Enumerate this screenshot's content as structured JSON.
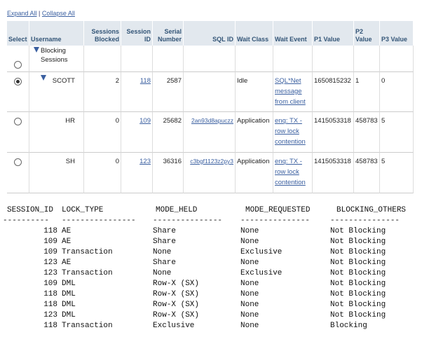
{
  "toolbar": {
    "expand": "Expand All",
    "separator": "|",
    "collapse": "Collapse All"
  },
  "table": {
    "headers": [
      "Select",
      "Username",
      "Sessions Blocked",
      "Session ID",
      "Serial Number",
      "SQL ID",
      "Wait Class",
      "Wait Event",
      "P1 Value",
      "P2 Value",
      "P3 Value"
    ],
    "root": "Blocking Sessions",
    "rows": [
      [
        "SCOTT",
        "2",
        "118",
        "2587",
        "",
        "Idle",
        "SQL*Net message from client",
        "1650815232",
        "1",
        "0"
      ],
      [
        "HR",
        "0",
        "109",
        "25682",
        "2an93d8apuczz",
        "Application",
        "enq: TX - row lock contention",
        "1415053318",
        "458783",
        "5"
      ],
      [
        "SH",
        "0",
        "123",
        "36316",
        "c3bgf1123z2py3",
        "Application",
        "enq: TX - row lock contention",
        "1415053318",
        "458783",
        "5"
      ]
    ]
  },
  "listing": {
    "headers": [
      "SESSION_ID",
      "LOCK_TYPE",
      "MODE_HELD",
      "MODE_REQUESTED",
      "BLOCKING_OTHERS"
    ],
    "rule": [
      "----------",
      "----------------",
      "---------------",
      "---------------",
      "---------------"
    ],
    "rows": [
      [
        "118",
        "AE",
        "Share",
        "None",
        "Not Blocking"
      ],
      [
        "109",
        "AE",
        "Share",
        "None",
        "Not Blocking"
      ],
      [
        "109",
        "Transaction",
        "None",
        "Exclusive",
        "Not Blocking"
      ],
      [
        "123",
        "AE",
        "Share",
        "None",
        "Not Blocking"
      ],
      [
        "123",
        "Transaction",
        "None",
        "Exclusive",
        "Not Blocking"
      ],
      [
        "109",
        "DML",
        "Row-X (SX)",
        "None",
        "Not Blocking"
      ],
      [
        "118",
        "DML",
        "Row-X (SX)",
        "None",
        "Not Blocking"
      ],
      [
        "118",
        "DML",
        "Row-X (SX)",
        "None",
        "Not Blocking"
      ],
      [
        "123",
        "DML",
        "Row-X (SX)",
        "None",
        "Not Blocking"
      ],
      [
        "118",
        "Transaction",
        "Exclusive",
        "None",
        "Blocking"
      ]
    ]
  }
}
